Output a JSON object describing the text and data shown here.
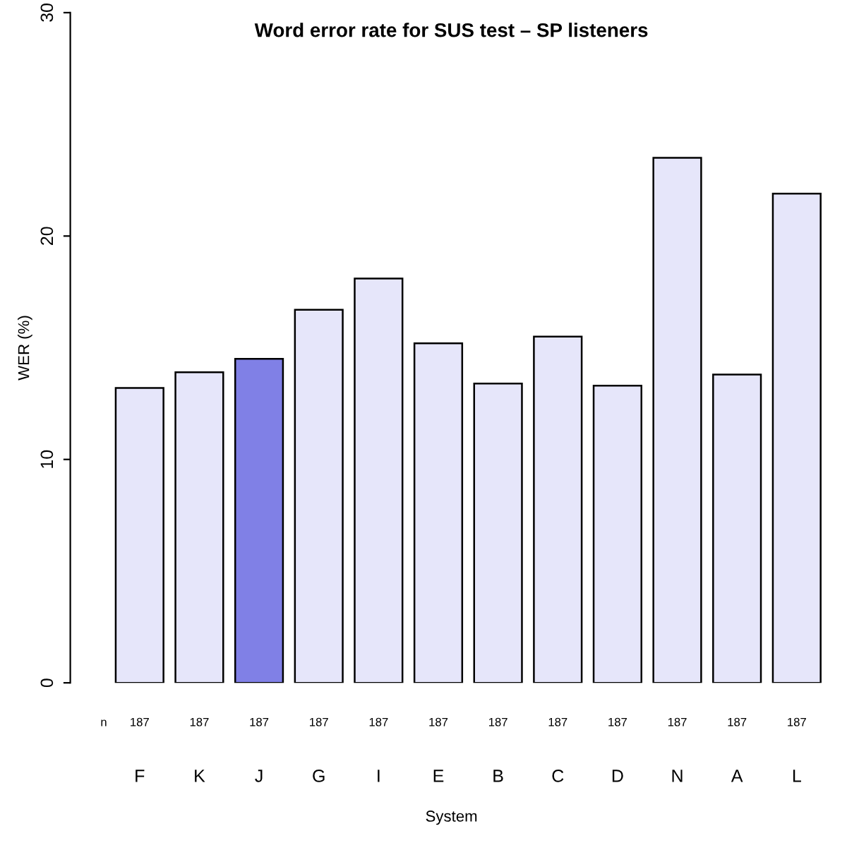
{
  "chart_data": {
    "type": "bar",
    "title": "Word error rate for SUS test – SP listeners",
    "xlabel": "System",
    "ylabel": "WER (%)",
    "categories": [
      "F",
      "K",
      "J",
      "G",
      "I",
      "E",
      "B",
      "C",
      "D",
      "N",
      "A",
      "L"
    ],
    "values": [
      13.2,
      13.9,
      14.5,
      16.7,
      18.1,
      15.2,
      13.4,
      15.5,
      13.3,
      23.5,
      13.8,
      21.9
    ],
    "colors": [
      "#e6e6fa",
      "#e6e6fa",
      "#8080e6",
      "#e6e6fa",
      "#e6e6fa",
      "#e6e6fa",
      "#e6e6fa",
      "#e6e6fa",
      "#e6e6fa",
      "#e6e6fa",
      "#e6e6fa",
      "#e6e6fa"
    ],
    "ylim": [
      0,
      30
    ],
    "yticks": [
      0,
      10,
      20,
      30
    ],
    "grid": false,
    "legend": false,
    "annotations": [
      "n",
      "187",
      "187",
      "187",
      "187",
      "187",
      "187",
      "187",
      "187",
      "187",
      "187",
      "187",
      "187"
    ]
  }
}
